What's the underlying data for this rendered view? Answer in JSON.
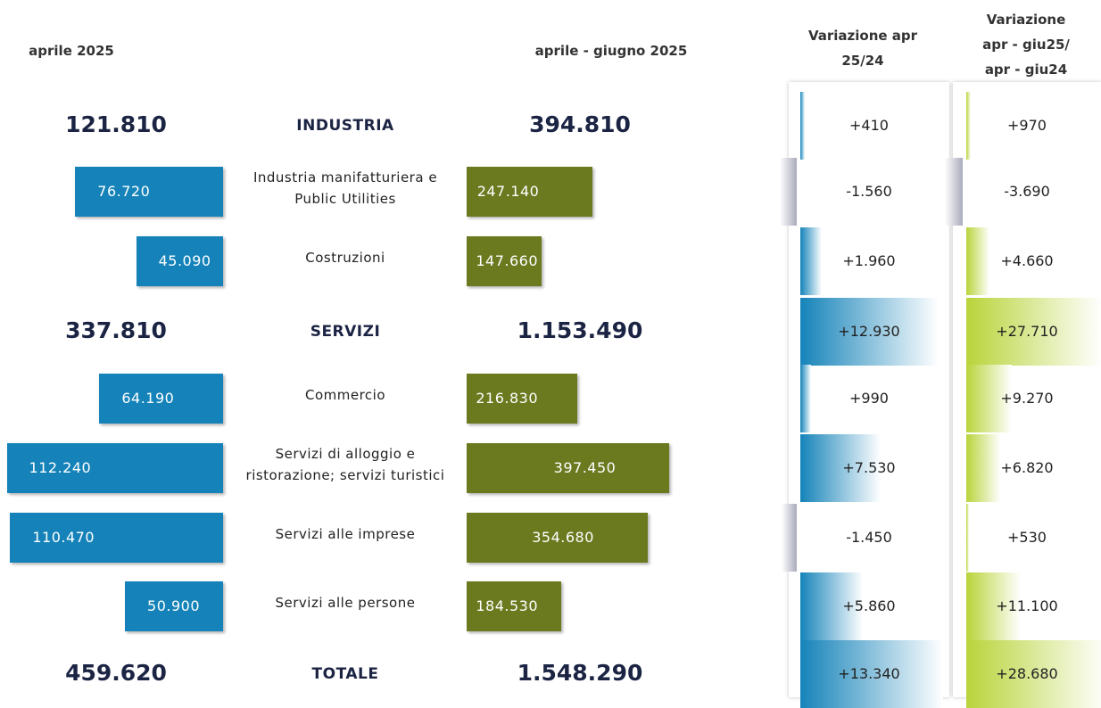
{
  "header": {
    "apr": "aprile 2025",
    "apr_giu": "aprile  - giugno 2025",
    "var_apr": "Variazione apr 25/24",
    "var_apr_giu": "Variazione apr - giu25/ apr - giu24"
  },
  "rows": [
    {
      "label": "INDUSTRIA",
      "apr": "121.810",
      "apr_giu": "394.810",
      "var_apr": "+410",
      "var_apr_giu": "+970"
    },
    {
      "label": "Industria manifatturiera e Public Utilities",
      "apr": "76.720",
      "apr_giu": "247.140",
      "var_apr": "-1.560",
      "var_apr_giu": "-3.690"
    },
    {
      "label": "Costruzioni",
      "apr": "45.090",
      "apr_giu": "147.660",
      "var_apr": "+1.960",
      "var_apr_giu": "+4.660"
    },
    {
      "label": "SERVIZI",
      "apr": "337.810",
      "apr_giu": "1.153.490",
      "var_apr": "+12.930",
      "var_apr_giu": "+27.710"
    },
    {
      "label": "Commercio",
      "apr": "64.190",
      "apr_giu": "216.830",
      "var_apr": "+990",
      "var_apr_giu": "+9.270"
    },
    {
      "label": "Servizi di alloggio e ristorazione; servizi turistici",
      "apr": "112.240",
      "apr_giu": "397.450",
      "var_apr": "+7.530",
      "var_apr_giu": "+6.820"
    },
    {
      "label": "Servizi alle imprese",
      "apr": "110.470",
      "apr_giu": "354.680",
      "var_apr": "-1.450",
      "var_apr_giu": "+530"
    },
    {
      "label": "Servizi alle persone",
      "apr": "50.900",
      "apr_giu": "184.530",
      "var_apr": "+5.860",
      "var_apr_giu": "+11.100"
    },
    {
      "label": "TOTALE",
      "apr": "459.620",
      "apr_giu": "1.548.290",
      "var_apr": "+13.340",
      "var_apr_giu": "+28.680"
    }
  ]
}
